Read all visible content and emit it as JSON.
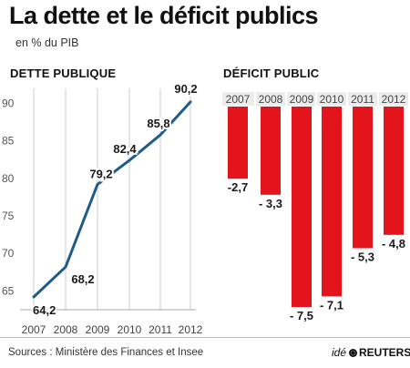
{
  "header": {
    "title": "La dette et le déficit publics",
    "subtitle": "en % du PIB"
  },
  "footer": {
    "source": "Sources : Ministère des Finances et Insee",
    "credit_prefix": "idé",
    "credit_brand": "REUTERS"
  },
  "chart_data": [
    {
      "type": "line",
      "title": "DETTE PUBLIQUE",
      "x": [
        "2007",
        "2008",
        "2009",
        "2010",
        "2011",
        "2012"
      ],
      "y": [
        64.2,
        68.2,
        79.2,
        82.4,
        85.8,
        90.2
      ],
      "data_labels": [
        "64,2",
        "68,2",
        "79,2",
        "82,4",
        "85,8",
        "90,2"
      ],
      "yticks": [
        65,
        70,
        75,
        80,
        85,
        90
      ],
      "ylim": [
        62.5,
        92
      ],
      "grid": "vertical",
      "color": "#1f5d86"
    },
    {
      "type": "bar",
      "title": "DÉFICIT PUBLIC",
      "categories": [
        "2007",
        "2008",
        "2009",
        "2010",
        "2011",
        "2012"
      ],
      "values": [
        -2.7,
        -3.3,
        -7.5,
        -7.1,
        -5.3,
        -4.8
      ],
      "data_labels": [
        "-2,7",
        "- 3,3",
        "- 7,5",
        "- 7,1",
        "- 5,3",
        "- 4,8"
      ],
      "ylim": [
        -7.5,
        0
      ],
      "color": "#e3141c"
    }
  ]
}
